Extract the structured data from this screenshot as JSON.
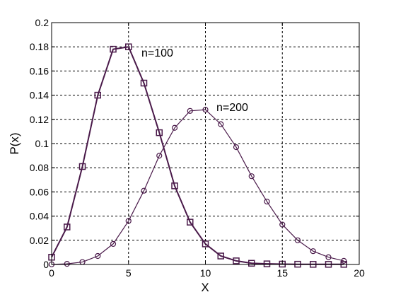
{
  "chart_data": {
    "type": "line",
    "title": "",
    "xlabel": "X",
    "ylabel": "P(x)",
    "xlim": [
      0,
      20
    ],
    "ylim": [
      0,
      0.2
    ],
    "xticks": [
      0,
      5,
      10,
      15,
      20
    ],
    "yticks": [
      0,
      0.02,
      0.04,
      0.06,
      0.08,
      0.1,
      0.12,
      0.14,
      0.16,
      0.18,
      0.2
    ],
    "xtick_labels": [
      "0",
      "5",
      "10",
      "15",
      "20"
    ],
    "ytick_labels": [
      "0",
      "0.02",
      "0.04",
      "0.06",
      "0.08",
      "0.1",
      "0.12",
      "0.14",
      "0.16",
      "0.18",
      "0.2"
    ],
    "grid": true,
    "grid_style": "dashed",
    "line_color": "#4a1a4a",
    "series": [
      {
        "marker": "square",
        "label_text": "n=100",
        "x": [
          0,
          1,
          2,
          3,
          4,
          5,
          6,
          7,
          8,
          9,
          10,
          11,
          12,
          13,
          14,
          15,
          16,
          17,
          18,
          19
        ],
        "y": [
          0.006,
          0.031,
          0.081,
          0.14,
          0.178,
          0.18,
          0.15,
          0.109,
          0.065,
          0.035,
          0.017,
          0.007,
          0.003,
          0.001,
          0.0005,
          0.0003,
          0.0002,
          0.0001,
          0.0001,
          0.0001
        ]
      },
      {
        "marker": "circle",
        "label_text": "n=200",
        "x": [
          0,
          1,
          2,
          3,
          4,
          5,
          6,
          7,
          8,
          9,
          10,
          11,
          12,
          13,
          14,
          15,
          16,
          17,
          18,
          19
        ],
        "y": [
          0.0001,
          0.0005,
          0.002,
          0.007,
          0.017,
          0.036,
          0.061,
          0.09,
          0.113,
          0.127,
          0.128,
          0.116,
          0.097,
          0.073,
          0.052,
          0.033,
          0.02,
          0.011,
          0.006,
          0.003
        ]
      }
    ]
  }
}
